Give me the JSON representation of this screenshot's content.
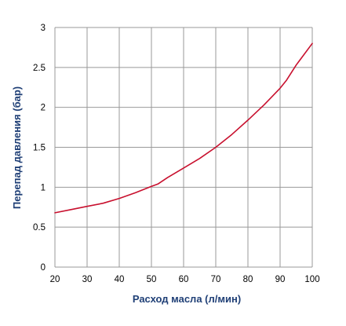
{
  "chart_data": {
    "type": "line",
    "title": "",
    "xlabel": "Расход масла (л/мин)",
    "ylabel": "Перепад давления (бар)",
    "xlim": [
      20,
      100
    ],
    "ylim": [
      0,
      3
    ],
    "x_ticks": [
      "20",
      "30",
      "40",
      "50",
      "60",
      "70",
      "80",
      "90",
      "100"
    ],
    "y_ticks": [
      "0",
      "0.5",
      "1",
      "1.5",
      "2",
      "2.5",
      "3"
    ],
    "grid": true,
    "legend": "none",
    "series": [
      {
        "x": [
          20,
          25,
          30,
          35,
          40,
          45,
          50,
          52,
          55,
          60,
          65,
          70,
          75,
          80,
          85,
          90,
          92,
          95,
          100
        ],
        "values": [
          0.68,
          0.72,
          0.76,
          0.8,
          0.86,
          0.93,
          1.01,
          1.04,
          1.12,
          1.24,
          1.36,
          1.5,
          1.66,
          1.84,
          2.03,
          2.24,
          2.34,
          2.53,
          2.8
        ]
      }
    ]
  },
  "colors": {
    "line": "#c8102e",
    "axis_title": "#1f3f76",
    "grid": "#999999",
    "tick_text": "#000000"
  }
}
